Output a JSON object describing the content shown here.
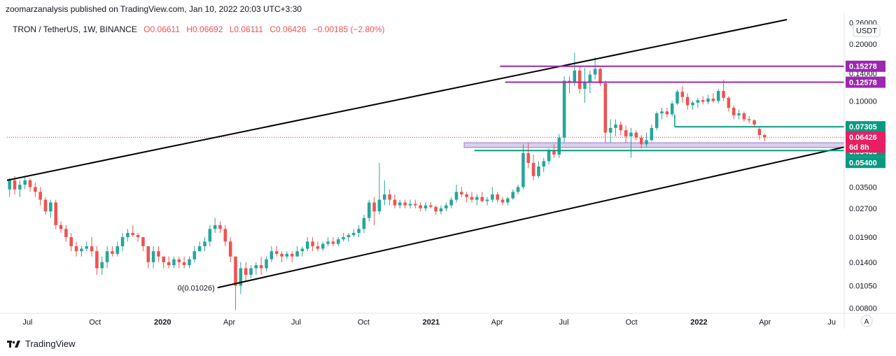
{
  "header": {
    "publish_line": "zoomarzanalysis published on TradingView.com, Jan 10, 2022 20:03 UTC+3:30"
  },
  "footer": {
    "brand": "TradingView"
  },
  "chart_data": {
    "type": "candlestick",
    "symbol_line": {
      "symbol": "TRON / TetherUS, 1W, BINANCE",
      "open": "O0.06611",
      "high": "H0.06692",
      "low": "L0.06111",
      "close": "C0.06426",
      "change": "−0.00185 (−2.80%)"
    },
    "currency": "USDT",
    "scale": "log",
    "ylim": [
      0.0075,
      0.27
    ],
    "y_ticks": [
      {
        "value": 0.26,
        "label": "0.26000"
      },
      {
        "value": 0.2,
        "label": "0.20000"
      },
      {
        "value": 0.14,
        "label": "0.14000"
      },
      {
        "value": 0.1,
        "label": "0.10000"
      },
      {
        "value": 0.035,
        "label": "0.03500"
      },
      {
        "value": 0.027,
        "label": "0.02700"
      },
      {
        "value": 0.019,
        "label": "0.01900"
      },
      {
        "value": 0.014,
        "label": "0.01400"
      },
      {
        "value": 0.0105,
        "label": "0.01050"
      },
      {
        "value": 0.008,
        "label": "0.00800"
      }
    ],
    "xlim": [
      "2019-06-03",
      "2022-07-18"
    ],
    "x_ticks": [
      {
        "date": "2019-07-01",
        "label": "Jul",
        "bold": false
      },
      {
        "date": "2019-10-01",
        "label": "Oct",
        "bold": false
      },
      {
        "date": "2020-01-01",
        "label": "2020",
        "bold": true
      },
      {
        "date": "2020-04-01",
        "label": "Apr",
        "bold": false
      },
      {
        "date": "2020-07-01",
        "label": "Jul",
        "bold": false
      },
      {
        "date": "2020-10-01",
        "label": "Oct",
        "bold": false
      },
      {
        "date": "2021-01-01",
        "label": "2021",
        "bold": true
      },
      {
        "date": "2021-04-01",
        "label": "Apr",
        "bold": false
      },
      {
        "date": "2021-07-01",
        "label": "Jul",
        "bold": false
      },
      {
        "date": "2021-10-01",
        "label": "Oct",
        "bold": false
      },
      {
        "date": "2022-01-01",
        "label": "2022",
        "bold": true
      },
      {
        "date": "2022-04-01",
        "label": "Apr",
        "bold": false
      },
      {
        "date": "2022-07-01",
        "label": "Ju",
        "bold": false
      }
    ],
    "colors": {
      "up": "#26a69a",
      "down": "#ef5350",
      "purple": "#9c27b0",
      "green": "#089981",
      "current": "#e91e63",
      "zone": "#d1c4e9",
      "zone_border": "#9575cd",
      "trend": "#000000"
    },
    "channel": {
      "upper": [
        {
          "date": "2019-06-03",
          "value": 0.038
        },
        {
          "date": "2022-05-01",
          "value": 0.27
        }
      ],
      "lower": [
        {
          "date": "2020-03-16",
          "value": 0.01026
        },
        {
          "date": "2022-07-18",
          "value": 0.057
        }
      ]
    },
    "low_annotation": {
      "date": "2020-03-16",
      "value": 0.01026,
      "text": "0(0.01026)"
    },
    "levels": [
      {
        "value": 0.15278,
        "label": "0.15278",
        "color": "purple",
        "from": "2021-04-05"
      },
      {
        "value": 0.12578,
        "label": "0.12578",
        "color": "purple",
        "from": "2021-04-12"
      },
      {
        "value": 0.07305,
        "label": "0.07305",
        "color": "green",
        "from": "2021-11-29"
      },
      {
        "value": 0.05463,
        "label": "0.05463",
        "color": "green",
        "from": "2021-03-01"
      },
      {
        "value": 0.054,
        "label": "0.05400",
        "color": "green",
        "from": null
      }
    ],
    "zone": {
      "from": "2021-02-15",
      "top": 0.0601,
      "bottom": 0.0567
    },
    "current": {
      "value": 0.06426,
      "label": "0.06426",
      "countdown": "6d 8h"
    },
    "candles_start": "2019-06-03",
    "candles": [
      [
        0.034,
        0.039,
        0.031,
        0.038
      ],
      [
        0.038,
        0.04,
        0.032,
        0.034
      ],
      [
        0.034,
        0.038,
        0.031,
        0.036
      ],
      [
        0.036,
        0.04,
        0.034,
        0.038
      ],
      [
        0.038,
        0.039,
        0.033,
        0.035
      ],
      [
        0.035,
        0.037,
        0.031,
        0.033
      ],
      [
        0.033,
        0.035,
        0.028,
        0.03
      ],
      [
        0.03,
        0.031,
        0.025,
        0.026
      ],
      [
        0.026,
        0.03,
        0.024,
        0.029
      ],
      [
        0.029,
        0.03,
        0.021,
        0.022
      ],
      [
        0.022,
        0.023,
        0.02,
        0.021
      ],
      [
        0.021,
        0.022,
        0.018,
        0.019
      ],
      [
        0.019,
        0.02,
        0.016,
        0.017
      ],
      [
        0.017,
        0.018,
        0.015,
        0.016
      ],
      [
        0.016,
        0.017,
        0.015,
        0.0165
      ],
      [
        0.0165,
        0.018,
        0.016,
        0.017
      ],
      [
        0.017,
        0.019,
        0.015,
        0.016
      ],
      [
        0.016,
        0.017,
        0.012,
        0.013
      ],
      [
        0.013,
        0.015,
        0.012,
        0.014
      ],
      [
        0.014,
        0.017,
        0.013,
        0.016
      ],
      [
        0.016,
        0.017,
        0.015,
        0.0155
      ],
      [
        0.0155,
        0.018,
        0.015,
        0.017
      ],
      [
        0.017,
        0.02,
        0.016,
        0.019
      ],
      [
        0.019,
        0.021,
        0.018,
        0.02
      ],
      [
        0.02,
        0.022,
        0.019,
        0.0195
      ],
      [
        0.0195,
        0.02,
        0.018,
        0.019
      ],
      [
        0.019,
        0.019,
        0.016,
        0.017
      ],
      [
        0.017,
        0.017,
        0.013,
        0.014
      ],
      [
        0.014,
        0.017,
        0.013,
        0.016
      ],
      [
        0.016,
        0.017,
        0.014,
        0.015
      ],
      [
        0.015,
        0.015,
        0.013,
        0.014
      ],
      [
        0.014,
        0.015,
        0.013,
        0.0135
      ],
      [
        0.0135,
        0.015,
        0.013,
        0.0145
      ],
      [
        0.0145,
        0.015,
        0.013,
        0.014
      ],
      [
        0.014,
        0.015,
        0.013,
        0.0135
      ],
      [
        0.0135,
        0.015,
        0.013,
        0.0145
      ],
      [
        0.0145,
        0.017,
        0.014,
        0.016
      ],
      [
        0.016,
        0.018,
        0.016,
        0.017
      ],
      [
        0.017,
        0.019,
        0.016,
        0.018
      ],
      [
        0.018,
        0.022,
        0.017,
        0.021
      ],
      [
        0.021,
        0.024,
        0.02,
        0.022
      ],
      [
        0.022,
        0.023,
        0.02,
        0.021
      ],
      [
        0.021,
        0.022,
        0.017,
        0.018
      ],
      [
        0.018,
        0.019,
        0.014,
        0.015
      ],
      [
        0.015,
        0.015,
        0.0078,
        0.0105
      ],
      [
        0.0105,
        0.014,
        0.0095,
        0.013
      ],
      [
        0.013,
        0.014,
        0.011,
        0.012
      ],
      [
        0.012,
        0.0135,
        0.0115,
        0.013
      ],
      [
        0.013,
        0.014,
        0.012,
        0.0135
      ],
      [
        0.0135,
        0.015,
        0.012,
        0.013
      ],
      [
        0.013,
        0.015,
        0.0125,
        0.0145
      ],
      [
        0.0145,
        0.017,
        0.014,
        0.016
      ],
      [
        0.016,
        0.017,
        0.015,
        0.0155
      ],
      [
        0.0155,
        0.016,
        0.014,
        0.015
      ],
      [
        0.015,
        0.016,
        0.0145,
        0.0155
      ],
      [
        0.0155,
        0.016,
        0.014,
        0.015
      ],
      [
        0.015,
        0.017,
        0.015,
        0.016
      ],
      [
        0.016,
        0.017,
        0.015,
        0.0165
      ],
      [
        0.0165,
        0.019,
        0.016,
        0.018
      ],
      [
        0.018,
        0.019,
        0.016,
        0.017
      ],
      [
        0.017,
        0.018,
        0.016,
        0.0165
      ],
      [
        0.0165,
        0.018,
        0.016,
        0.0175
      ],
      [
        0.0175,
        0.019,
        0.017,
        0.018
      ],
      [
        0.018,
        0.019,
        0.017,
        0.0175
      ],
      [
        0.0175,
        0.019,
        0.017,
        0.0185
      ],
      [
        0.0185,
        0.02,
        0.018,
        0.019
      ],
      [
        0.019,
        0.02,
        0.018,
        0.0195
      ],
      [
        0.0195,
        0.021,
        0.019,
        0.02
      ],
      [
        0.02,
        0.022,
        0.019,
        0.021
      ],
      [
        0.021,
        0.025,
        0.02,
        0.024
      ],
      [
        0.024,
        0.03,
        0.023,
        0.029
      ],
      [
        0.029,
        0.031,
        0.022,
        0.026
      ],
      [
        0.026,
        0.047,
        0.025,
        0.03
      ],
      [
        0.03,
        0.038,
        0.028,
        0.032
      ],
      [
        0.032,
        0.034,
        0.028,
        0.03
      ],
      [
        0.03,
        0.032,
        0.027,
        0.028
      ],
      [
        0.028,
        0.03,
        0.027,
        0.029
      ],
      [
        0.029,
        0.03,
        0.027,
        0.028
      ],
      [
        0.028,
        0.03,
        0.027,
        0.0285
      ],
      [
        0.0285,
        0.03,
        0.027,
        0.028
      ],
      [
        0.028,
        0.029,
        0.026,
        0.027
      ],
      [
        0.027,
        0.029,
        0.026,
        0.028
      ],
      [
        0.028,
        0.029,
        0.027,
        0.0275
      ],
      [
        0.0275,
        0.028,
        0.025,
        0.026
      ],
      [
        0.026,
        0.028,
        0.025,
        0.027
      ],
      [
        0.027,
        0.029,
        0.026,
        0.028
      ],
      [
        0.028,
        0.031,
        0.027,
        0.03
      ],
      [
        0.03,
        0.036,
        0.029,
        0.033
      ],
      [
        0.033,
        0.035,
        0.031,
        0.032
      ],
      [
        0.032,
        0.033,
        0.029,
        0.031
      ],
      [
        0.031,
        0.033,
        0.029,
        0.03
      ],
      [
        0.03,
        0.032,
        0.028,
        0.031
      ],
      [
        0.031,
        0.033,
        0.029,
        0.0295
      ],
      [
        0.0295,
        0.031,
        0.028,
        0.03
      ],
      [
        0.03,
        0.035,
        0.029,
        0.032
      ],
      [
        0.032,
        0.033,
        0.029,
        0.03
      ],
      [
        0.03,
        0.031,
        0.028,
        0.029
      ],
      [
        0.029,
        0.031,
        0.028,
        0.0305
      ],
      [
        0.0305,
        0.034,
        0.03,
        0.033
      ],
      [
        0.033,
        0.036,
        0.032,
        0.035
      ],
      [
        0.035,
        0.059,
        0.034,
        0.053
      ],
      [
        0.053,
        0.06,
        0.044,
        0.047
      ],
      [
        0.047,
        0.052,
        0.038,
        0.04
      ],
      [
        0.04,
        0.048,
        0.039,
        0.045
      ],
      [
        0.045,
        0.05,
        0.042,
        0.048
      ],
      [
        0.048,
        0.056,
        0.046,
        0.055
      ],
      [
        0.055,
        0.059,
        0.05,
        0.052
      ],
      [
        0.052,
        0.067,
        0.05,
        0.064
      ],
      [
        0.064,
        0.135,
        0.06,
        0.128
      ],
      [
        0.128,
        0.135,
        0.11,
        0.125
      ],
      [
        0.125,
        0.18,
        0.12,
        0.145
      ],
      [
        0.145,
        0.152,
        0.11,
        0.116
      ],
      [
        0.116,
        0.15,
        0.098,
        0.125
      ],
      [
        0.125,
        0.145,
        0.11,
        0.138
      ],
      [
        0.138,
        0.17,
        0.13,
        0.148
      ],
      [
        0.148,
        0.15,
        0.12,
        0.124
      ],
      [
        0.124,
        0.128,
        0.06,
        0.068
      ],
      [
        0.068,
        0.08,
        0.06,
        0.072
      ],
      [
        0.072,
        0.08,
        0.065,
        0.075
      ],
      [
        0.075,
        0.078,
        0.066,
        0.07
      ],
      [
        0.07,
        0.074,
        0.06,
        0.065
      ],
      [
        0.065,
        0.072,
        0.05,
        0.068
      ],
      [
        0.068,
        0.07,
        0.062,
        0.064
      ],
      [
        0.064,
        0.066,
        0.056,
        0.059
      ],
      [
        0.059,
        0.068,
        0.057,
        0.062
      ],
      [
        0.062,
        0.075,
        0.061,
        0.072
      ],
      [
        0.072,
        0.088,
        0.07,
        0.086
      ],
      [
        0.086,
        0.092,
        0.08,
        0.088
      ],
      [
        0.088,
        0.092,
        0.082,
        0.085
      ],
      [
        0.085,
        0.1,
        0.083,
        0.097
      ],
      [
        0.097,
        0.115,
        0.095,
        0.112
      ],
      [
        0.112,
        0.12,
        0.098,
        0.105
      ],
      [
        0.105,
        0.11,
        0.09,
        0.095
      ],
      [
        0.095,
        0.1,
        0.09,
        0.098
      ],
      [
        0.098,
        0.104,
        0.092,
        0.101
      ],
      [
        0.101,
        0.106,
        0.096,
        0.099
      ],
      [
        0.099,
        0.108,
        0.096,
        0.103
      ],
      [
        0.103,
        0.11,
        0.098,
        0.1
      ],
      [
        0.1,
        0.116,
        0.097,
        0.113
      ],
      [
        0.113,
        0.13,
        0.1,
        0.104
      ],
      [
        0.104,
        0.106,
        0.088,
        0.092
      ],
      [
        0.092,
        0.095,
        0.08,
        0.084
      ],
      [
        0.084,
        0.09,
        0.08,
        0.086
      ],
      [
        0.086,
        0.088,
        0.078,
        0.08
      ],
      [
        0.08,
        0.083,
        0.076,
        0.079
      ],
      [
        0.079,
        0.08,
        0.073,
        0.075
      ],
      [
        0.0711,
        0.0725,
        0.0625,
        0.0661
      ],
      [
        0.06611,
        0.06692,
        0.06111,
        0.06426
      ]
    ]
  }
}
